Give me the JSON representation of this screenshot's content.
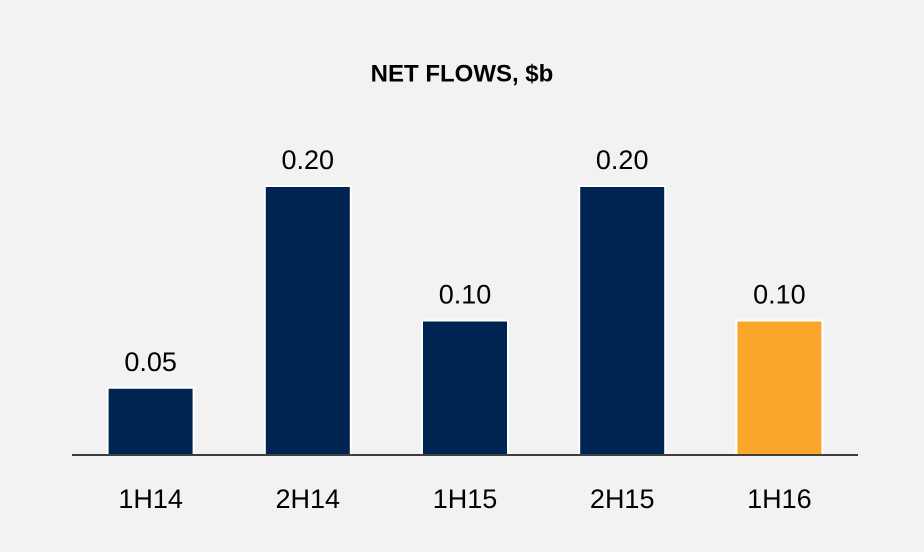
{
  "chart_data": {
    "type": "bar",
    "title": "NET FLOWS, $b",
    "categories": [
      "1H14",
      "2H14",
      "1H15",
      "2H15",
      "1H16"
    ],
    "values": [
      0.05,
      0.2,
      0.1,
      0.2,
      0.1
    ],
    "value_labels": [
      "0.05",
      "0.20",
      "0.10",
      "0.20",
      "0.10"
    ],
    "colors": [
      "#002452",
      "#002452",
      "#002452",
      "#002452",
      "#f9a62b"
    ]
  }
}
